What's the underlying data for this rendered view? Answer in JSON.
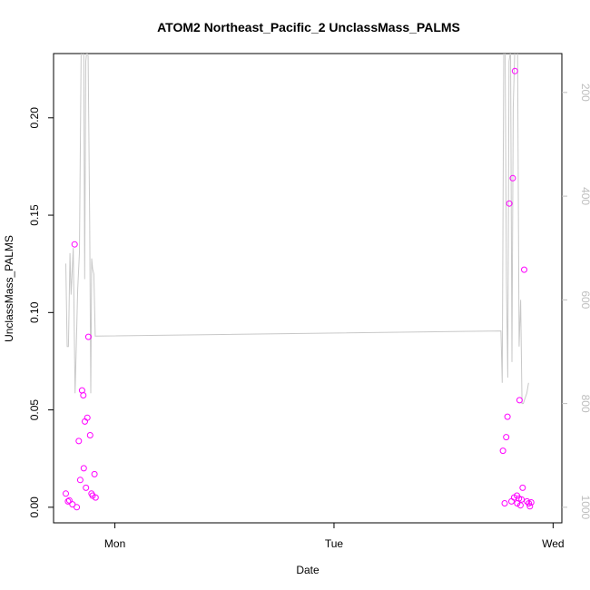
{
  "chart_data": {
    "type": "scatter",
    "title": "ATOM2 Northeast_Pacific_2 UnclassMass_PALMS",
    "xlabel": "Date",
    "ylabel": "UnclassMass_PALMS",
    "x_ticks": [
      "Mon",
      "Tue",
      "Wed"
    ],
    "x_tick_values": [
      1.0,
      2.0,
      3.0
    ],
    "xlim": [
      0.72,
      3.04
    ],
    "ylim": [
      -0.008,
      0.233
    ],
    "y_ticks": [
      0.0,
      0.05,
      0.1,
      0.15,
      0.2
    ],
    "y_tick_labels": [
      "0.00",
      "0.05",
      "0.10",
      "0.15",
      "0.20"
    ],
    "y2_ticks": [
      200,
      400,
      600,
      800,
      1000
    ],
    "y2_tick_labels": [
      "200",
      "400",
      "600",
      "800",
      "1000"
    ],
    "y2_reversed": true,
    "y2lim": [
      1030,
      125
    ],
    "colors": {
      "points": "#ff00ff",
      "altitude_line": "#c8c8c8",
      "axis": "#000000",
      "right_axis": "#bebebe"
    },
    "series": [
      {
        "type": "scatter",
        "axis": "left",
        "x": [
          0.776,
          0.786,
          0.792,
          0.806,
          0.816,
          0.826,
          0.835,
          0.842,
          0.85,
          0.856,
          0.858,
          0.863,
          0.868,
          0.874,
          0.879,
          0.887,
          0.893,
          0.898,
          0.907,
          0.912,
          2.771,
          2.779,
          2.786,
          2.792,
          2.8,
          2.81,
          2.816,
          2.822,
          2.826,
          2.835,
          2.836,
          2.844,
          2.847,
          2.851,
          2.856,
          2.861,
          2.868,
          2.881,
          2.889,
          2.894,
          2.9
        ],
        "y": [
          0.007,
          0.003,
          0.0035,
          0.0015,
          0.135,
          0.0,
          0.034,
          0.014,
          0.06,
          0.0575,
          0.02,
          0.044,
          0.01,
          0.046,
          0.0875,
          0.037,
          0.007,
          0.006,
          0.017,
          0.005,
          0.029,
          0.002,
          0.036,
          0.0465,
          0.156,
          0.003,
          0.169,
          0.005,
          0.224,
          0.006,
          0.002,
          0.0045,
          0.055,
          0.001,
          0.004,
          0.01,
          0.122,
          0.003,
          0.002,
          0.0005,
          0.0025
        ]
      },
      {
        "type": "line",
        "axis": "right",
        "x": [
          0.776,
          0.782,
          0.788,
          0.795,
          0.8,
          0.81,
          0.818,
          0.823,
          0.83,
          0.838,
          0.846,
          0.852,
          0.858,
          0.862,
          0.867,
          0.872,
          0.878,
          0.885,
          0.89,
          0.894,
          0.898,
          0.904,
          0.91,
          0.915,
          2.762,
          2.768,
          2.775,
          2.781,
          2.787,
          2.793,
          2.799,
          2.806,
          2.812,
          2.818,
          2.825,
          2.832,
          2.838,
          2.845,
          2.852,
          2.858,
          2.864,
          2.872,
          2.88,
          2.888
        ],
        "y": [
          530,
          690,
          690,
          510,
          590,
          500,
          780,
          700,
          580,
          510,
          120,
          120,
          130,
          560,
          140,
          120,
          130,
          450,
          780,
          520,
          540,
          550,
          670,
          670,
          660,
          760,
          120,
          120,
          560,
          750,
          140,
          120,
          720,
          230,
          120,
          120,
          120,
          690,
          600,
          800,
          800,
          790,
          780,
          760
        ]
      }
    ]
  }
}
